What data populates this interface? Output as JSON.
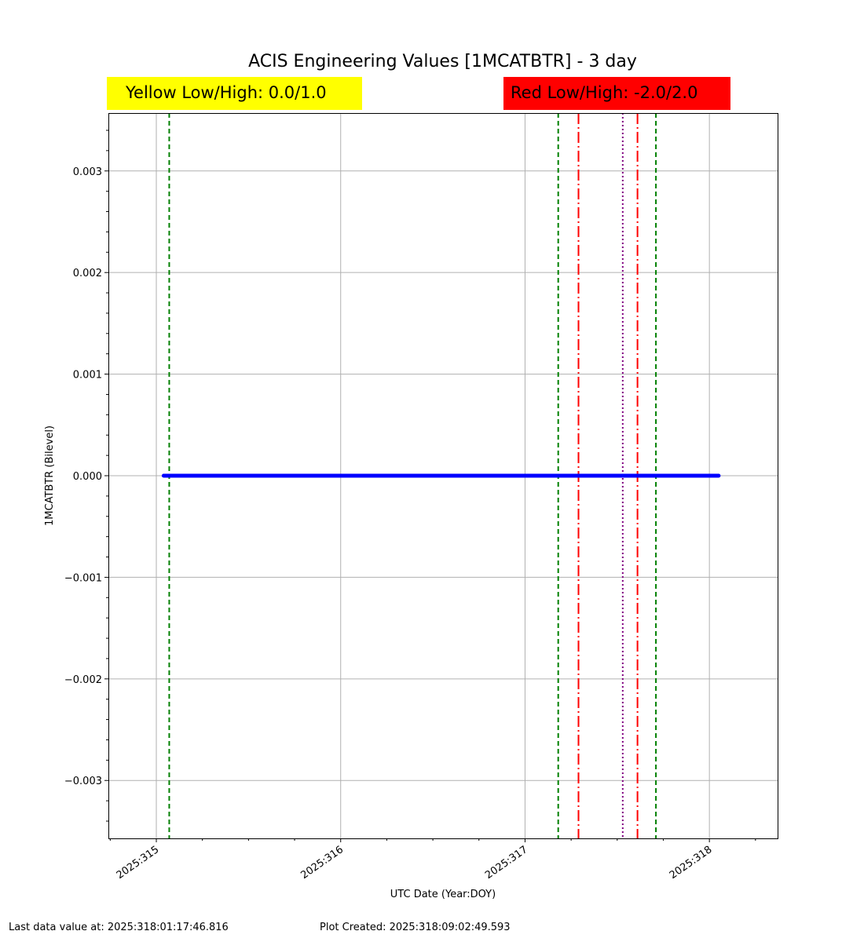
{
  "chart_data": {
    "type": "line",
    "title": "ACIS Engineering Values [1MCATBTR] - 3 day",
    "xlabel": "UTC Date (Year:DOY)",
    "ylabel": "1MCATBTR (Bilevel)",
    "xlim": [
      314.74,
      318.37
    ],
    "ylim": [
      -0.00357,
      0.00357
    ],
    "x_ticks": [
      {
        "value": 315,
        "label": "2025:315"
      },
      {
        "value": 316,
        "label": "2025:316"
      },
      {
        "value": 317,
        "label": "2025:317"
      },
      {
        "value": 318,
        "label": "2025:318"
      }
    ],
    "x_minor_step": 0.25,
    "y_ticks": [
      {
        "value": 0.003,
        "label": "0.003"
      },
      {
        "value": 0.002,
        "label": "0.002"
      },
      {
        "value": 0.001,
        "label": "0.001"
      },
      {
        "value": 0.0,
        "label": "0.000"
      },
      {
        "value": -0.001,
        "label": "−0.001"
      },
      {
        "value": -0.002,
        "label": "−0.002"
      },
      {
        "value": -0.003,
        "label": "−0.003"
      }
    ],
    "y_minor_step": 0.0002,
    "grid": true,
    "series": [
      {
        "x": [
          315.04,
          318.05
        ],
        "values": [
          0.0,
          0.0
        ],
        "color": "#0000ff"
      }
    ],
    "vertical_lines": [
      {
        "x": 315.07,
        "style": "dashed",
        "color": "#008000"
      },
      {
        "x": 317.18,
        "style": "dashed",
        "color": "#008000"
      },
      {
        "x": 317.29,
        "style": "dashdot",
        "color": "#ff0000"
      },
      {
        "x": 317.53,
        "style": "dotted",
        "color": "#800080"
      },
      {
        "x": 317.61,
        "style": "dashdot",
        "color": "#ff0000"
      },
      {
        "x": 317.71,
        "style": "dashed",
        "color": "#008000"
      }
    ]
  },
  "limits": {
    "yellow_label": "Yellow Low/High: 0.0/1.0",
    "red_label": "Red Low/High: -2.0/2.0",
    "yellow_color": "#ffff00",
    "red_color": "#ff0000"
  },
  "footer": {
    "last_data": "Last data value at: 2025:318:01:17:46.816",
    "plot_created": "Plot Created: 2025:318:09:02:49.593"
  }
}
